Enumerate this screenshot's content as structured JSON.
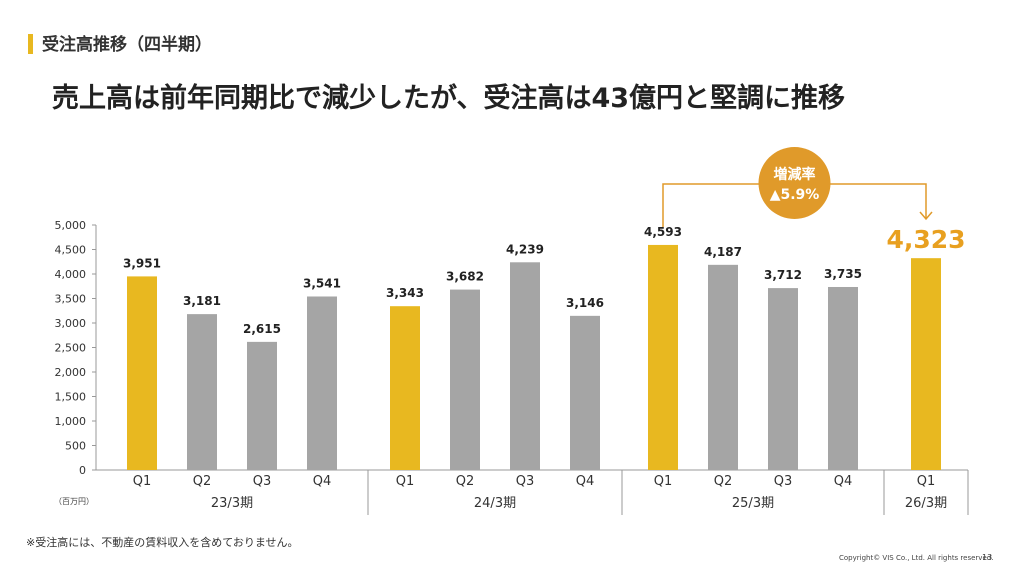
{
  "section_title": "受注高推移（四半期）",
  "headline": "売上高は前年同期比で減少したが、受注高は43億円と堅調に推移",
  "callout": {
    "label": "増減率",
    "value": "▲5.9%"
  },
  "footnote": "※受注高には、不動産の賃料収入を含めておりません。",
  "copyright": "Copyright© VIS Co., Ltd. All rights reserved.",
  "page_number": "13",
  "colors": {
    "highlight": "#e8b820",
    "bar": "#a5a5a5",
    "callout": "#e09a2a",
    "latest_label": "#e8a020"
  },
  "chart_data": {
    "type": "bar",
    "unit_label": "（百万円）",
    "ylim": [
      0,
      5000
    ],
    "yticks": [
      "0",
      "500",
      "1,000",
      "1,500",
      "2,000",
      "2,500",
      "3,000",
      "3,500",
      "4,000",
      "4,500",
      "5,000"
    ],
    "grid": false,
    "groups": [
      {
        "label": "23/3期",
        "bars": [
          {
            "quarter": "Q1",
            "value": 3951,
            "label": "3,951",
            "highlight": true
          },
          {
            "quarter": "Q2",
            "value": 3181,
            "label": "3,181",
            "highlight": false
          },
          {
            "quarter": "Q3",
            "value": 2615,
            "label": "2,615",
            "highlight": false
          },
          {
            "quarter": "Q4",
            "value": 3541,
            "label": "3,541",
            "highlight": false
          }
        ]
      },
      {
        "label": "24/3期",
        "bars": [
          {
            "quarter": "Q1",
            "value": 3343,
            "label": "3,343",
            "highlight": true
          },
          {
            "quarter": "Q2",
            "value": 3682,
            "label": "3,682",
            "highlight": false
          },
          {
            "quarter": "Q3",
            "value": 4239,
            "label": "4,239",
            "highlight": false
          },
          {
            "quarter": "Q4",
            "value": 3146,
            "label": "3,146",
            "highlight": false
          }
        ]
      },
      {
        "label": "25/3期",
        "bars": [
          {
            "quarter": "Q1",
            "value": 4593,
            "label": "4,593",
            "highlight": true
          },
          {
            "quarter": "Q2",
            "value": 4187,
            "label": "4,187",
            "highlight": false
          },
          {
            "quarter": "Q3",
            "value": 3712,
            "label": "3,712",
            "highlight": false
          },
          {
            "quarter": "Q4",
            "value": 3735,
            "label": "3,735",
            "highlight": false
          }
        ]
      },
      {
        "label": "26/3期",
        "bars": [
          {
            "quarter": "Q1",
            "value": 4323,
            "label": "4,323",
            "highlight": true,
            "emphasis": true
          }
        ]
      }
    ]
  }
}
